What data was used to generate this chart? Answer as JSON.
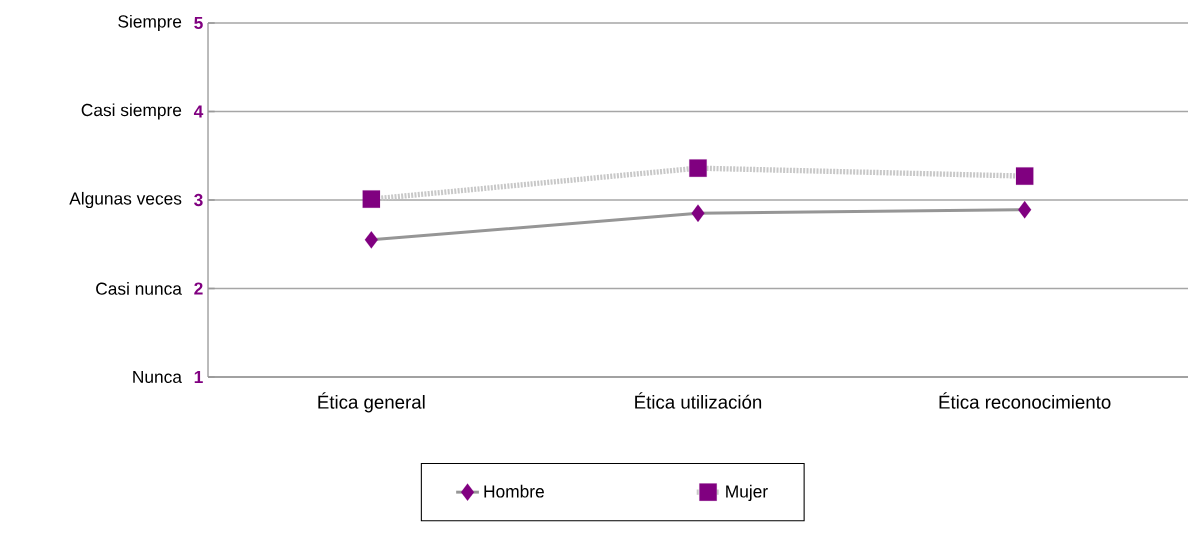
{
  "chart_data": {
    "type": "line",
    "categories": [
      "Ética general",
      "Ética utilización",
      "Ética reconocimiento"
    ],
    "series": [
      {
        "name": "Hombre",
        "color": "#800080",
        "marker": "diamond",
        "line_style": "solid",
        "values": [
          2.55,
          2.85,
          2.89
        ]
      },
      {
        "name": "Mujer",
        "color": "#800080",
        "marker": "square",
        "line_style": "dotted",
        "values": [
          3.01,
          3.36,
          3.27
        ]
      }
    ],
    "ylim": [
      1,
      5
    ],
    "yticks": [
      1,
      2,
      3,
      4,
      5
    ],
    "annotations": [
      "Nunca",
      "Casi nunca",
      "Algunas veces",
      "Casi siempre",
      "Siempre"
    ],
    "grid": "y",
    "legend": "bottom"
  }
}
